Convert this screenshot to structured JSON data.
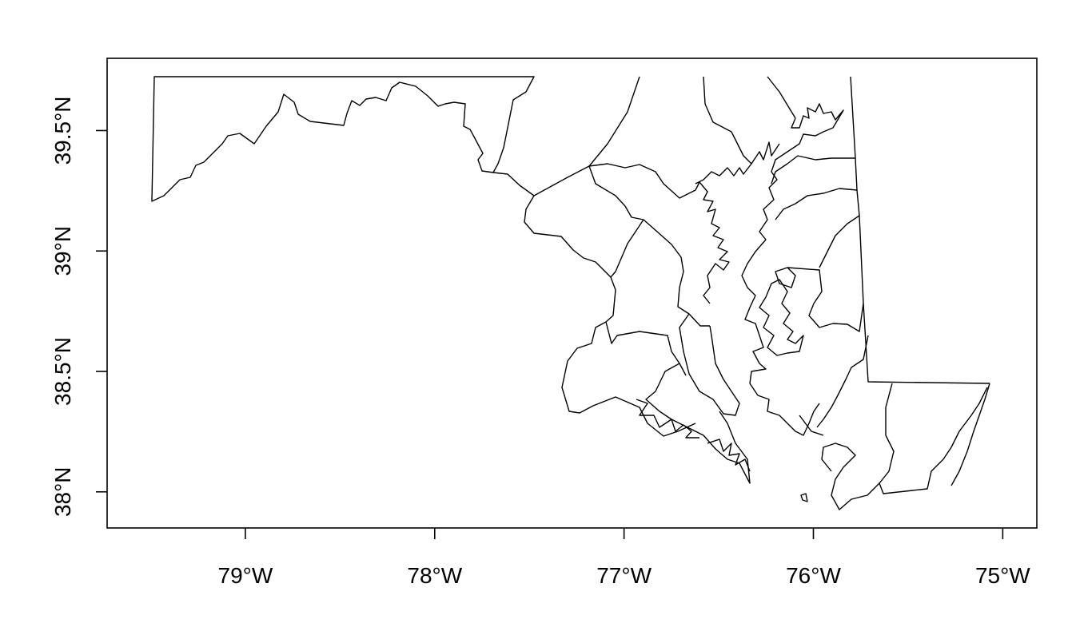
{
  "map": {
    "region": "Maryland counties",
    "projection": "longitude-latitude",
    "xlim": [
      -79.73,
      -74.82
    ],
    "ylim": [
      37.85,
      39.8
    ],
    "x_ticks": [
      {
        "value": -79,
        "label": "79°W"
      },
      {
        "value": -78,
        "label": "78°W"
      },
      {
        "value": -77,
        "label": "77°W"
      },
      {
        "value": -76,
        "label": "76°W"
      },
      {
        "value": -75,
        "label": "75°W"
      }
    ],
    "y_ticks": [
      {
        "value": 38.0,
        "label": "38°N"
      },
      {
        "value": 38.5,
        "label": "38.5°N"
      },
      {
        "value": 39.0,
        "label": "39°N"
      },
      {
        "value": 39.5,
        "label": "39.5°N"
      }
    ],
    "line_color": "#000000",
    "background": "#ffffff"
  }
}
